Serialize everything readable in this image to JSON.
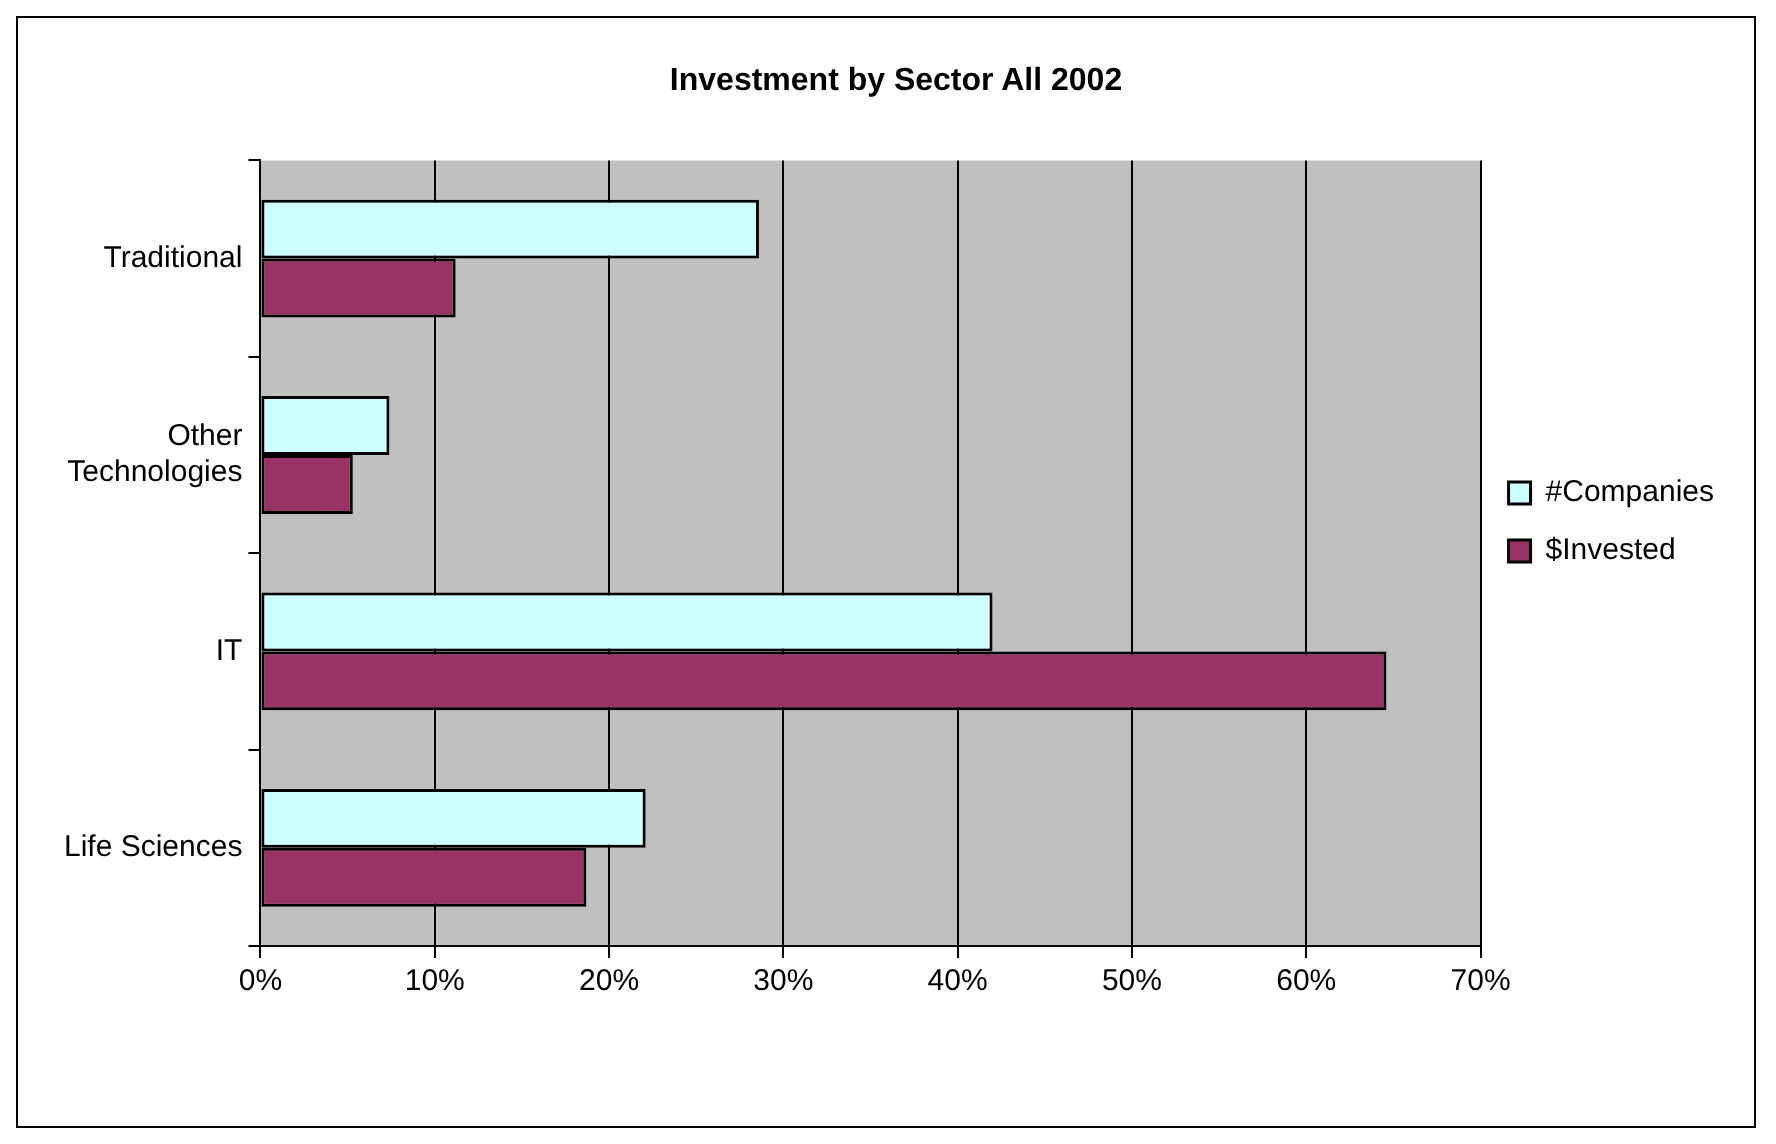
{
  "chart_data": {
    "type": "bar",
    "orientation": "horizontal",
    "title": "Investment by Sector All 2002",
    "categories": [
      "Traditional",
      "Other Technologies",
      "IT",
      "Life Sciences"
    ],
    "series": [
      {
        "name": "#Companies",
        "color": "#ccffff",
        "values": [
          28.6,
          7.4,
          42.0,
          22.1
        ]
      },
      {
        "name": "$Invested",
        "color": "#993366",
        "values": [
          11.2,
          5.3,
          64.6,
          18.7
        ]
      }
    ],
    "xlim": [
      0,
      70
    ],
    "xticks": [
      {
        "value": 0,
        "label": "0%"
      },
      {
        "value": 10,
        "label": "10%"
      },
      {
        "value": 20,
        "label": "20%"
      },
      {
        "value": 30,
        "label": "30%"
      },
      {
        "value": 40,
        "label": "40%"
      },
      {
        "value": 50,
        "label": "50%"
      },
      {
        "value": 60,
        "label": "60%"
      },
      {
        "value": 70,
        "label": "70%"
      }
    ],
    "grid": "x",
    "legend": "right"
  }
}
